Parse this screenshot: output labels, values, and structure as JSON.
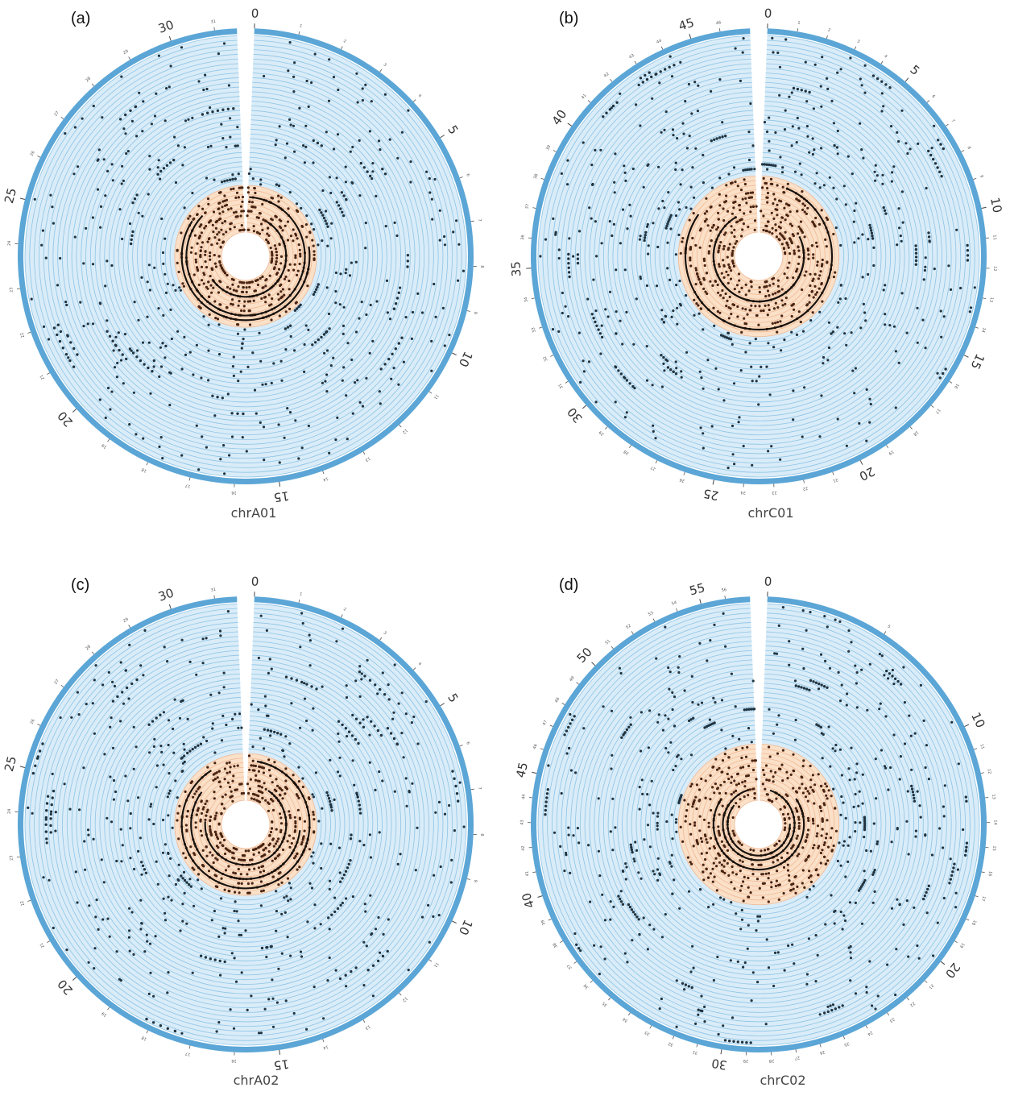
{
  "chart_data": [
    {
      "type": "scatter",
      "panel": "(a)",
      "chromosome": "chrA01",
      "length_mb": 31.5,
      "major_ticks": [
        0,
        5,
        10,
        15,
        20,
        25,
        30
      ],
      "minor_tick_labels": [
        "1",
        "2",
        "3",
        "4",
        "6",
        "7",
        "8",
        "9",
        "11",
        "12",
        "13",
        "14",
        "16",
        "17",
        "18",
        "19",
        "21",
        "22",
        "23",
        "24",
        "26",
        "27",
        "28",
        "29",
        "31"
      ],
      "tracks_total": 42,
      "tracks_highlighted": 10,
      "colors": {
        "ideogram": "#5ba6d6",
        "track_bg": "#d9ecf8",
        "track_line": "#8ec4e6",
        "highlight_bg": "#fbe0c8",
        "highlight_line": "#f0b892",
        "dot": "#1f3442",
        "dot_highlight": "#4a2412"
      },
      "seed": 11
    },
    {
      "type": "scatter",
      "panel": "(b)",
      "chromosome": "chrC01",
      "length_mb": 47,
      "major_ticks": [
        0,
        5,
        10,
        15,
        20,
        25,
        30,
        35,
        40,
        45
      ],
      "minor_tick_labels": [
        "1",
        "2",
        "3",
        "4",
        "6",
        "7",
        "8",
        "9",
        "11",
        "12",
        "13",
        "14",
        "16",
        "17",
        "18",
        "19",
        "21",
        "22",
        "23",
        "24",
        "26",
        "27",
        "28",
        "29",
        "31",
        "32",
        "33",
        "34",
        "36",
        "37",
        "38",
        "39",
        "41",
        "42",
        "43",
        "44",
        "46"
      ],
      "tracks_total": 42,
      "tracks_highlighted": 12,
      "colors": {
        "ideogram": "#5ba6d6",
        "track_bg": "#d9ecf8",
        "track_line": "#8ec4e6",
        "highlight_bg": "#fbe0c8",
        "highlight_line": "#f0b892",
        "dot": "#1f3442",
        "dot_highlight": "#4a2412"
      },
      "seed": 23
    },
    {
      "type": "scatter",
      "panel": "(c)",
      "chromosome": "chrA02",
      "length_mb": 31.5,
      "major_ticks": [
        0,
        5,
        10,
        15,
        20,
        25,
        30
      ],
      "minor_tick_labels": [
        "1",
        "2",
        "3",
        "4",
        "6",
        "7",
        "8",
        "9",
        "11",
        "12",
        "13",
        "14",
        "16",
        "17",
        "18",
        "19",
        "21",
        "22",
        "23",
        "24",
        "26",
        "27",
        "28",
        "29",
        "31"
      ],
      "tracks_total": 42,
      "tracks_highlighted": 10,
      "colors": {
        "ideogram": "#5ba6d6",
        "track_bg": "#d9ecf8",
        "track_line": "#8ec4e6",
        "highlight_bg": "#fbe0c8",
        "highlight_line": "#f0b892",
        "dot": "#1f3442",
        "dot_highlight": "#4a2412"
      },
      "seed": 37
    },
    {
      "type": "scatter",
      "panel": "(d)",
      "chromosome": "chrC02",
      "length_mb": 57,
      "major_ticks": [
        0,
        10,
        20,
        30,
        40,
        45,
        50,
        55
      ],
      "minor_tick_labels": [
        "5",
        "11",
        "12",
        "13",
        "14",
        "15",
        "16",
        "17",
        "18",
        "19",
        "21",
        "22",
        "23",
        "24",
        "25",
        "26",
        "27",
        "28",
        "29",
        "31",
        "32",
        "33",
        "34",
        "35",
        "36",
        "37",
        "38",
        "39",
        "41",
        "42",
        "43",
        "44",
        "46",
        "47",
        "48",
        "49",
        "51",
        "52",
        "53",
        "54",
        "56"
      ],
      "tracks_total": 42,
      "tracks_highlighted": 12,
      "colors": {
        "ideogram": "#5ba6d6",
        "track_bg": "#d9ecf8",
        "track_line": "#8ec4e6",
        "highlight_bg": "#fbe0c8",
        "highlight_line": "#f0b892",
        "dot": "#1f3442",
        "dot_highlight": "#4a2412"
      },
      "seed": 53
    }
  ]
}
